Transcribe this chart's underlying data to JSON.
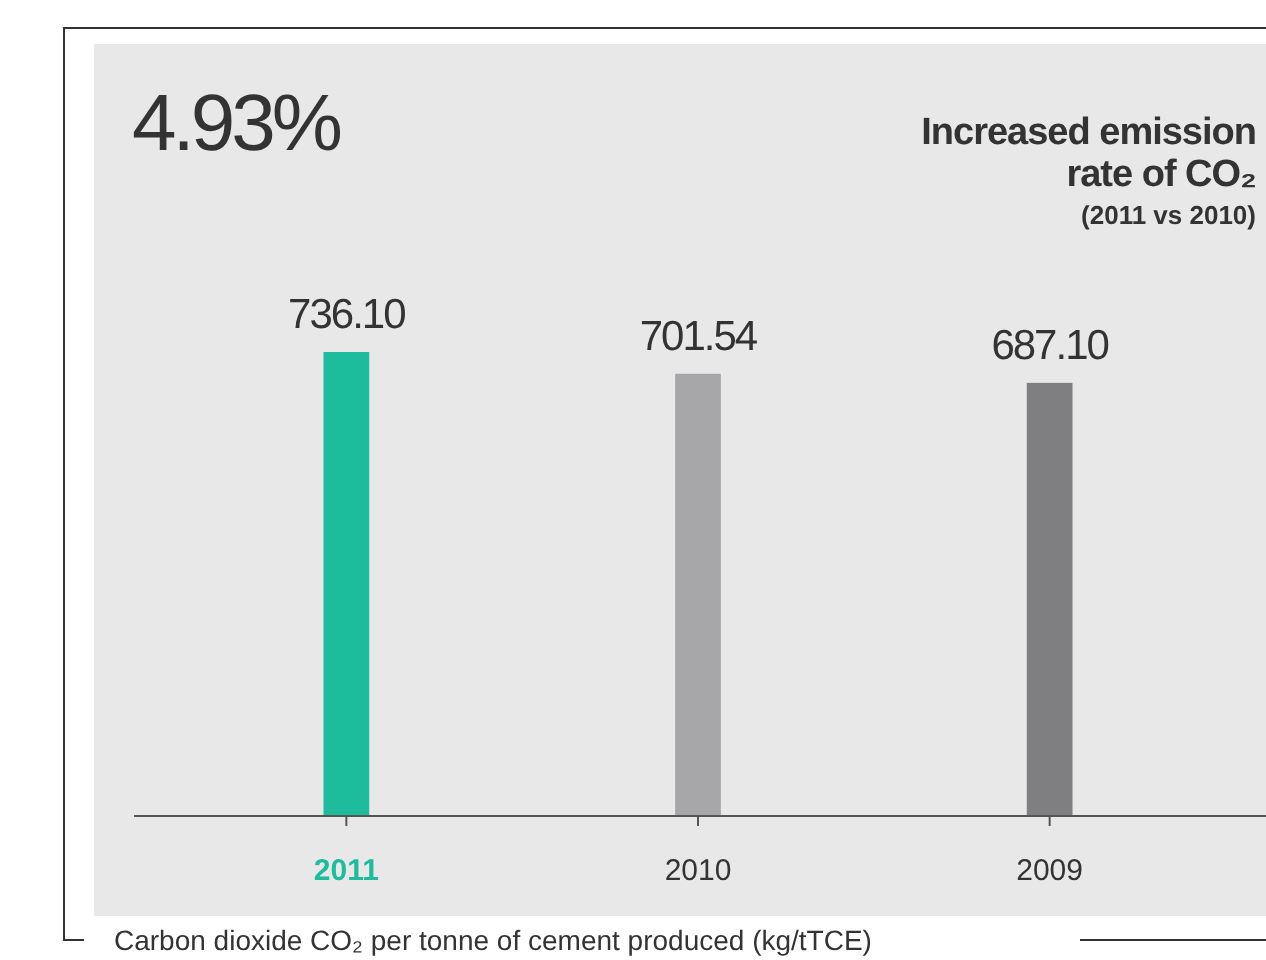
{
  "chart_data": {
    "type": "bar",
    "title": "4.93%",
    "subtitle": "Increased emission rate of CO₂",
    "annotations": [
      "(2011 vs 2010)"
    ],
    "xlabel": "Carbon dioxide CO₂ per tonne of cement produced (kg/tTCE)",
    "categories": [
      "2011",
      "2010",
      "2009"
    ],
    "values": [
      736.1,
      701.54,
      687.1
    ],
    "colors": [
      "#1dbc9c",
      "#a7a7a9",
      "#7f7f82"
    ],
    "value_labels": [
      "736.10",
      "701.54",
      "687.10"
    ]
  }
}
